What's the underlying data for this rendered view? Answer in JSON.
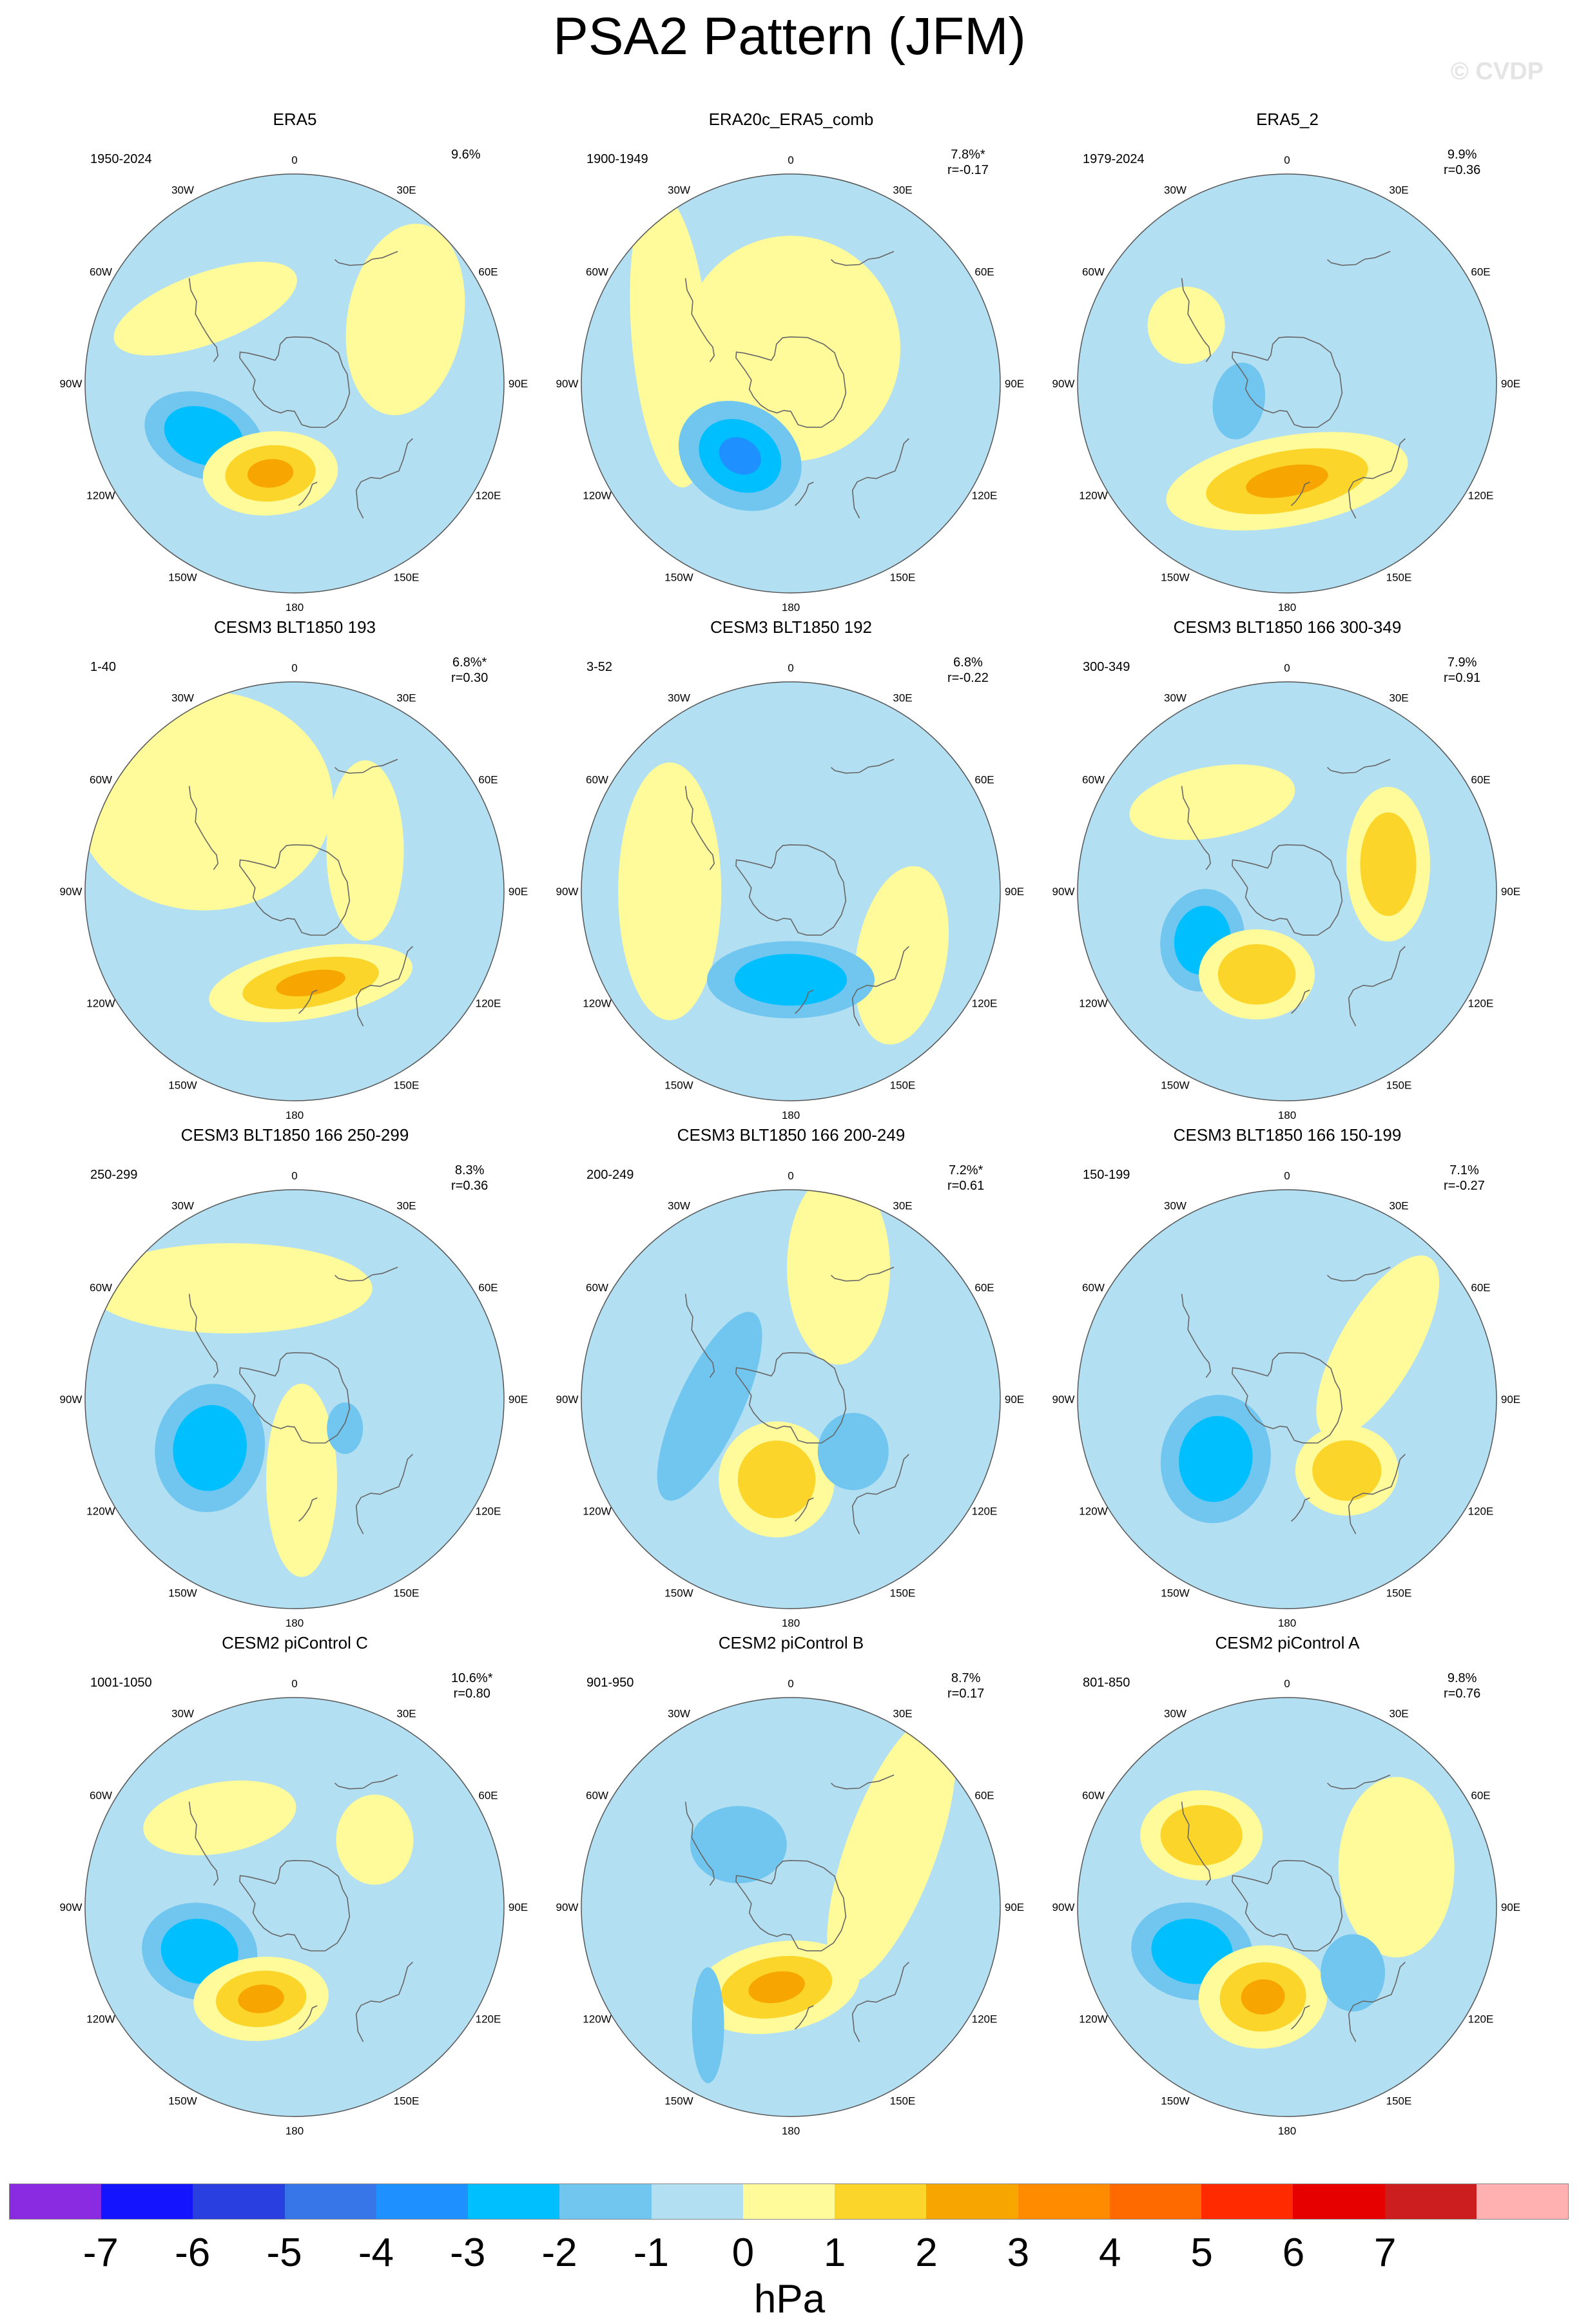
{
  "title": "PSA2 Pattern (JFM)",
  "watermark": "© CVDP",
  "map_labels": {
    "lon_0": "0",
    "lon_30w": "30W",
    "lon_30e": "30E",
    "lon_60w": "60W",
    "lon_60e": "60E",
    "lon_90w": "90W",
    "lon_90e": "90E",
    "lon_120w": "120W",
    "lon_120e": "120E",
    "lon_150w": "150W",
    "lon_150e": "150E",
    "lon_180": "180"
  },
  "colors": {
    "ocean_negative": "#b3dff2",
    "ocean_positive": "#fffa9a",
    "land_outline": "#666666",
    "neg1": "#b3dff2",
    "neg2": "#70c6ef",
    "neg3": "#00bfff",
    "neg4": "#1e90ff",
    "pos1": "#fffa9a",
    "pos2": "#fcd52a",
    "pos3": "#f7a500",
    "pos4": "#ff8c00"
  },
  "panels": [
    {
      "title": "ERA5",
      "years": "1950-2024",
      "pct": "9.6%",
      "r": "",
      "blobs": [
        {
          "lon": 240,
          "lat": -45,
          "rx": 95,
          "ry": 65,
          "rot": 20,
          "levels": -3
        },
        {
          "lon": 195,
          "lat": -50,
          "rx": 105,
          "ry": 65,
          "rot": -5,
          "levels": 3
        },
        {
          "lon": 310,
          "lat": -40,
          "rx": 150,
          "ry": 55,
          "rot": -20,
          "levels": 1
        },
        {
          "lon": 60,
          "lat": -35,
          "rx": 90,
          "ry": 150,
          "rot": 10,
          "levels": 1
        }
      ]
    },
    {
      "title": "ERA20c_ERA5_comb",
      "years": "1900-1949",
      "pct": "7.8%*",
      "r": "r=-0.17",
      "blobs": [
        {
          "lon": 215,
          "lat": -52,
          "rx": 100,
          "ry": 80,
          "rot": 30,
          "levels": -4
        },
        {
          "lon": 0,
          "lat": -75,
          "rx": 170,
          "ry": 175,
          "rot": 0,
          "levels": 1
        },
        {
          "lon": 290,
          "lat": -35,
          "rx": 60,
          "ry": 230,
          "rot": -5,
          "levels": 1
        }
      ]
    },
    {
      "title": "ERA5_2",
      "years": "1979-2024",
      "pct": "9.9%",
      "r": "r=0.36",
      "blobs": [
        {
          "lon": 180,
          "lat": -48,
          "rx": 190,
          "ry": 70,
          "rot": -10,
          "levels": 3
        },
        {
          "lon": 250,
          "lat": -68,
          "rx": 40,
          "ry": 60,
          "rot": 10,
          "levels": -2
        },
        {
          "lon": 300,
          "lat": -40,
          "rx": 60,
          "ry": 60,
          "rot": 0,
          "levels": 1
        }
      ]
    },
    {
      "title": "CESM3 BLT1850 193",
      "years": "1-40",
      "pct": "6.8%*",
      "r": "r=0.30",
      "blobs": [
        {
          "lon": 170,
          "lat": -50,
          "rx": 160,
          "ry": 55,
          "rot": -10,
          "levels": 3
        },
        {
          "lon": 315,
          "lat": -35,
          "rx": 200,
          "ry": 170,
          "rot": 0,
          "levels": 1
        },
        {
          "lon": 60,
          "lat": -55,
          "rx": 60,
          "ry": 140,
          "rot": 0,
          "levels": 1
        }
      ]
    },
    {
      "title": "CESM3 BLT1850 192",
      "years": "3-52",
      "pct": "6.8%",
      "r": "r=-0.22",
      "blobs": [
        {
          "lon": 180,
          "lat": -52,
          "rx": 130,
          "ry": 60,
          "rot": 0,
          "levels": -3
        },
        {
          "lon": 270,
          "lat": -38,
          "rx": 80,
          "ry": 200,
          "rot": 0,
          "levels": 1
        },
        {
          "lon": 120,
          "lat": -35,
          "rx": 70,
          "ry": 140,
          "rot": 10,
          "levels": 1
        }
      ]
    },
    {
      "title": "CESM3 BLT1850 166 300-349",
      "years": "300-349",
      "pct": "7.9%",
      "r": "r=0.91",
      "blobs": [
        {
          "lon": 240,
          "lat": -48,
          "rx": 65,
          "ry": 80,
          "rot": 10,
          "levels": -3
        },
        {
          "lon": 200,
          "lat": -52,
          "rx": 90,
          "ry": 70,
          "rot": 0,
          "levels": 2
        },
        {
          "lon": 75,
          "lat": -45,
          "rx": 65,
          "ry": 120,
          "rot": 0,
          "levels": 2
        },
        {
          "lon": 320,
          "lat": -40,
          "rx": 130,
          "ry": 55,
          "rot": -10,
          "levels": 1
        }
      ]
    },
    {
      "title": "CESM3 BLT1850 166 250-299",
      "years": "250-299",
      "pct": "8.3%",
      "r": "r=0.36",
      "blobs": [
        {
          "lon": 240,
          "lat": -48,
          "rx": 85,
          "ry": 100,
          "rot": 10,
          "levels": -3
        },
        {
          "lon": 330,
          "lat": -35,
          "rx": 220,
          "ry": 70,
          "rot": 0,
          "levels": 1
        },
        {
          "lon": 175,
          "lat": -55,
          "rx": 55,
          "ry": 150,
          "rot": 0,
          "levels": 1
        },
        {
          "lon": 120,
          "lat": -65,
          "rx": 28,
          "ry": 40,
          "rot": 0,
          "levels": -2
        }
      ]
    },
    {
      "title": "CESM3 BLT1850 166 200-249",
      "years": "200-249",
      "pct": "7.2%*",
      "r": "r=0.61",
      "blobs": [
        {
          "lon": 190,
          "lat": -55,
          "rx": 90,
          "ry": 90,
          "rot": 0,
          "levels": 2
        },
        {
          "lon": 265,
          "lat": -55,
          "rx": 50,
          "ry": 160,
          "rot": 25,
          "levels": -2
        },
        {
          "lon": 130,
          "lat": -55,
          "rx": 55,
          "ry": 60,
          "rot": 0,
          "levels": -2
        },
        {
          "lon": 20,
          "lat": -30,
          "rx": 80,
          "ry": 150,
          "rot": 0,
          "levels": 1
        }
      ]
    },
    {
      "title": "CESM3 BLT1850 166 150-199",
      "years": "150-199",
      "pct": "7.1%",
      "r": "r=-0.27",
      "blobs": [
        {
          "lon": 230,
          "lat": -50,
          "rx": 85,
          "ry": 100,
          "rot": 10,
          "levels": -3
        },
        {
          "lon": 140,
          "lat": -50,
          "rx": 80,
          "ry": 70,
          "rot": 0,
          "levels": 2
        },
        {
          "lon": 60,
          "lat": -45,
          "rx": 60,
          "ry": 160,
          "rot": 30,
          "levels": 1
        }
      ]
    },
    {
      "title": "CESM2 piControl C",
      "years": "1001-1050",
      "pct": "10.6%*",
      "r": "r=0.80",
      "blobs": [
        {
          "lon": 245,
          "lat": -45,
          "rx": 90,
          "ry": 75,
          "rot": 10,
          "levels": -3
        },
        {
          "lon": 200,
          "lat": -48,
          "rx": 105,
          "ry": 65,
          "rot": -5,
          "levels": 3
        },
        {
          "lon": 320,
          "lat": -40,
          "rx": 120,
          "ry": 55,
          "rot": -10,
          "levels": 1
        },
        {
          "lon": 50,
          "lat": -45,
          "rx": 60,
          "ry": 70,
          "rot": 0,
          "levels": 1
        }
      ]
    },
    {
      "title": "CESM2 piControl B",
      "years": "901-950",
      "pct": "8.7%",
      "r": "r=0.17",
      "blobs": [
        {
          "lon": 190,
          "lat": -55,
          "rx": 130,
          "ry": 70,
          "rot": -10,
          "levels": 3
        },
        {
          "lon": 320,
          "lat": -55,
          "rx": 75,
          "ry": 60,
          "rot": 0,
          "levels": -2
        },
        {
          "lon": 60,
          "lat": -40,
          "rx": 70,
          "ry": 220,
          "rot": 20,
          "levels": 1
        },
        {
          "lon": 215,
          "lat": -28,
          "rx": 25,
          "ry": 90,
          "rot": 0,
          "levels": -2
        }
      ]
    },
    {
      "title": "CESM2 piControl A",
      "years": "801-850",
      "pct": "9.8%",
      "r": "r=0.76",
      "blobs": [
        {
          "lon": 245,
          "lat": -45,
          "rx": 95,
          "ry": 75,
          "rot": 10,
          "levels": -3
        },
        {
          "lon": 195,
          "lat": -50,
          "rx": 100,
          "ry": 80,
          "rot": -5,
          "levels": 3
        },
        {
          "lon": 310,
          "lat": -42,
          "rx": 95,
          "ry": 70,
          "rot": 0,
          "levels": 2
        },
        {
          "lon": 135,
          "lat": -50,
          "rx": 50,
          "ry": 60,
          "rot": 0,
          "levels": -2
        },
        {
          "lon": 70,
          "lat": -40,
          "rx": 90,
          "ry": 140,
          "rot": 0,
          "levels": 1
        }
      ]
    }
  ],
  "colorbar": {
    "units": "hPa",
    "colors": [
      "#8a2be2",
      "#1414ff",
      "#2a3fe0",
      "#3676e8",
      "#1e90ff",
      "#00bfff",
      "#70c6ef",
      "#b3dff2",
      "#fffa9a",
      "#fcd52a",
      "#f7a500",
      "#ff8c00",
      "#ff6a00",
      "#ff2a00",
      "#e60000",
      "#cc1e1e",
      "#ffb0b0"
    ],
    "ticks": [
      "-7",
      "-6",
      "-5",
      "-4",
      "-3",
      "-2",
      "-1",
      "0",
      "1",
      "2",
      "3",
      "4",
      "5",
      "6",
      "7"
    ]
  }
}
